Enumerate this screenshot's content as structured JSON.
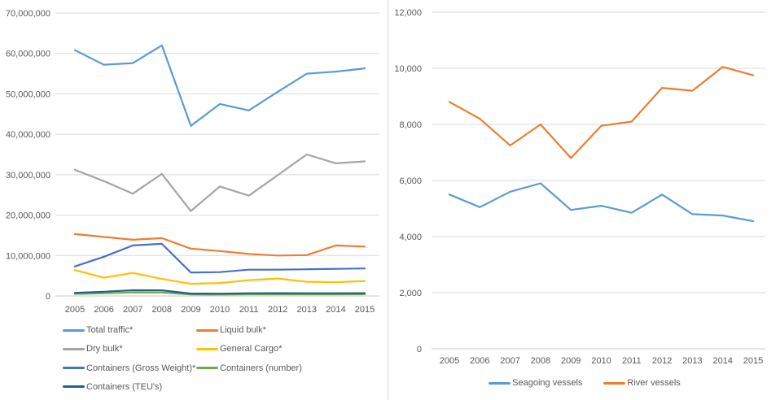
{
  "chart_data": [
    {
      "type": "line",
      "name": "port-cargo-traffic",
      "title": "",
      "xlabel": "",
      "ylabel": "",
      "grid": true,
      "legend_position": "bottom",
      "ylim": [
        0,
        70000000
      ],
      "y_ticks": [
        "70,000,000",
        "60,000,000",
        "50,000,000",
        "40,000,000",
        "30,000,000",
        "20,000,000",
        "10,000,000",
        "0"
      ],
      "categories": [
        "2005",
        "2006",
        "2007",
        "2008",
        "2009",
        "2010",
        "2011",
        "2012",
        "2013",
        "2014",
        "2015"
      ],
      "series": [
        {
          "name": "Total traffic*",
          "color": "#5B9BD5",
          "values": [
            60800000,
            57200000,
            57600000,
            62000000,
            42100000,
            47500000,
            45900000,
            50500000,
            55000000,
            55500000,
            56300000
          ]
        },
        {
          "name": "Liquid bulk*",
          "color": "#ED7D31",
          "values": [
            15300000,
            14600000,
            13900000,
            14300000,
            11700000,
            11100000,
            10400000,
            10000000,
            10100000,
            12500000,
            12200000
          ]
        },
        {
          "name": "Dry bulk*",
          "color": "#A5A5A5",
          "values": [
            31200000,
            28400000,
            25300000,
            30200000,
            21000000,
            27100000,
            24800000,
            29900000,
            35000000,
            32800000,
            33300000
          ]
        },
        {
          "name": "General Cargo*",
          "color": "#FFC000",
          "values": [
            6400000,
            4500000,
            5700000,
            4200000,
            3000000,
            3200000,
            3900000,
            4300000,
            3500000,
            3400000,
            3700000
          ]
        },
        {
          "name": "Containers (Gross Weight)*",
          "color": "#4472C4",
          "values": [
            7300000,
            9700000,
            12500000,
            12900000,
            5800000,
            5900000,
            6500000,
            6500000,
            6600000,
            6700000,
            6800000
          ]
        },
        {
          "name": "Containers (number)",
          "color": "#70AD47",
          "values": [
            500000,
            640000,
            860000,
            850000,
            360000,
            350000,
            400000,
            410000,
            400000,
            410000,
            420000
          ]
        },
        {
          "name": "Containers (TEU's)",
          "color": "#255E91",
          "values": [
            770000,
            1040000,
            1400000,
            1380000,
            590000,
            560000,
            660000,
            680000,
            660000,
            670000,
            690000
          ]
        }
      ]
    },
    {
      "type": "line",
      "name": "vessel-calls",
      "title": "",
      "xlabel": "",
      "ylabel": "",
      "grid": true,
      "legend_position": "bottom",
      "ylim": [
        0,
        12000
      ],
      "y_ticks": [
        "12,000",
        "10,000",
        "8,000",
        "6,000",
        "4,000",
        "2,000",
        "0"
      ],
      "categories": [
        "2005",
        "2006",
        "2007",
        "2008",
        "2009",
        "2010",
        "2011",
        "2012",
        "2013",
        "2014",
        "2015"
      ],
      "series": [
        {
          "name": "Seagoing vessels",
          "color": "#5B9BD5",
          "values": [
            5500,
            5050,
            5600,
            5900,
            4950,
            5100,
            4850,
            5500,
            4800,
            4750,
            4550
          ]
        },
        {
          "name": "River vessels",
          "color": "#ED7D31",
          "values": [
            8800,
            8200,
            7250,
            8000,
            6800,
            7950,
            8100,
            9300,
            9200,
            10050,
            9750
          ]
        }
      ]
    }
  ],
  "colors": {
    "gridline": "#d9d9d9",
    "axis_line": "#c9c9c9",
    "tick_label": "#595959"
  }
}
